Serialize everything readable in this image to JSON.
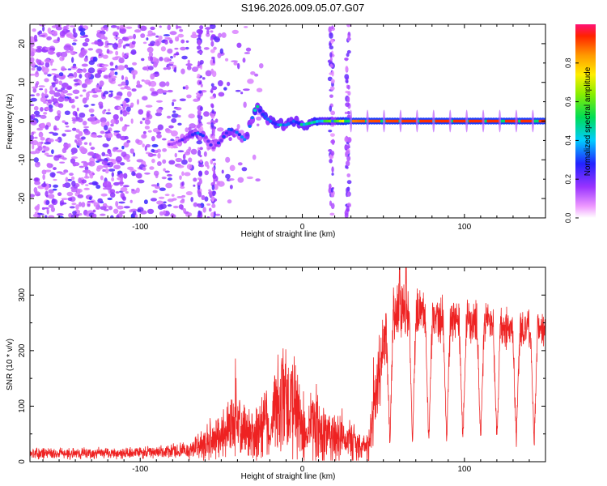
{
  "figure": {
    "title": "S196.2026.009.05.07.G07"
  },
  "chart_data": [
    {
      "type": "heatmap",
      "name": "spectrogram",
      "xlabel": "Height of straight line (km)",
      "ylabel": "Frequency (Hz)",
      "xlim": [
        -168,
        150
      ],
      "ylim": [
        -25,
        25
      ],
      "xticks": [
        -100,
        0,
        100
      ],
      "xtick_labels": [
        "-100",
        "0",
        "100"
      ],
      "yticks": [
        -20,
        -10,
        0,
        10,
        20
      ],
      "ytick_labels": [
        "-20",
        "-10",
        "0",
        "10",
        "20"
      ],
      "colorbar": {
        "label": "Normalized spectral amplitude",
        "range": [
          0.0,
          1.0
        ],
        "ticks": [
          0.0,
          0.2,
          0.4,
          0.6,
          0.8
        ],
        "tick_labels": [
          "0.0",
          "0.2",
          "0.4",
          "0.6",
          "0.8"
        ]
      },
      "signal_trace": {
        "x": [
          -80,
          -75,
          -70,
          -65,
          -60,
          -55,
          -50,
          -45,
          -40,
          -35,
          -30,
          -28,
          -25,
          -20,
          -15,
          -10,
          -5,
          0,
          10,
          20,
          30,
          40,
          60,
          80,
          100,
          120,
          150
        ],
        "y": [
          -6,
          -5,
          -4,
          -3,
          -4,
          -7,
          -5,
          -2,
          -3,
          -5,
          2,
          4,
          2,
          0,
          -1,
          -1,
          0,
          -1,
          0,
          0,
          0,
          0,
          0,
          0,
          0,
          0,
          0
        ],
        "amplitude": [
          0.15,
          0.2,
          0.3,
          0.35,
          0.25,
          0.2,
          0.3,
          0.35,
          0.3,
          0.3,
          0.45,
          0.5,
          0.45,
          0.4,
          0.4,
          0.4,
          0.45,
          0.45,
          0.5,
          0.55,
          0.85,
          0.9,
          0.92,
          0.93,
          0.93,
          0.93,
          0.93
        ]
      },
      "vertical_streaks_x": [
        -63,
        -55,
        18,
        28
      ]
    },
    {
      "type": "line",
      "name": "snr",
      "xlabel": "Height of straight line (km)",
      "ylabel": "SNR (10 * v/v)",
      "xlim": [
        -168,
        150
      ],
      "ylim": [
        0,
        350
      ],
      "xticks": [
        -100,
        0,
        100
      ],
      "xtick_labels": [
        "-100",
        "0",
        "100"
      ],
      "yticks": [
        0,
        100,
        200,
        300
      ],
      "ytick_labels": [
        "0",
        "100",
        "200",
        "300"
      ],
      "series": [
        {
          "name": "SNR",
          "color": "#ee2222",
          "envelope": {
            "x": [
              -168,
              -140,
              -110,
              -85,
              -70,
              -60,
              -50,
              -42,
              -36,
              -30,
              -25,
              -18,
              -12,
              -6,
              0,
              6,
              12,
              20,
              25,
              30,
              35,
              40,
              43,
              47,
              50,
              55,
              60,
              66,
              70,
              80,
              90,
              100,
              110,
              120,
              130,
              140,
              150
            ],
            "base": [
              15,
              15,
              15,
              18,
              20,
              30,
              50,
              70,
              60,
              40,
              60,
              90,
              120,
              100,
              60,
              70,
              50,
              40,
              50,
              40,
              20,
              20,
              60,
              150,
              220,
              260,
              275,
              280,
              270,
              260,
              255,
              250,
              250,
              245,
              240,
              240,
              240
            ],
            "amp": [
              12,
              12,
              12,
              14,
              18,
              40,
              50,
              60,
              70,
              60,
              80,
              100,
              120,
              120,
              80,
              90,
              70,
              60,
              50,
              50,
              40,
              40,
              60,
              80,
              70,
              60,
              60,
              55,
              55,
              50,
              50,
              50,
              50,
              45,
              45,
              45,
              45
            ]
          },
          "dropout_x": [
            -20,
            3,
            27,
            38,
            54,
            68,
            78,
            89,
            99,
            110,
            120,
            132,
            143
          ],
          "peak_x": [
            -41,
            44,
            60,
            64
          ]
        }
      ]
    }
  ]
}
